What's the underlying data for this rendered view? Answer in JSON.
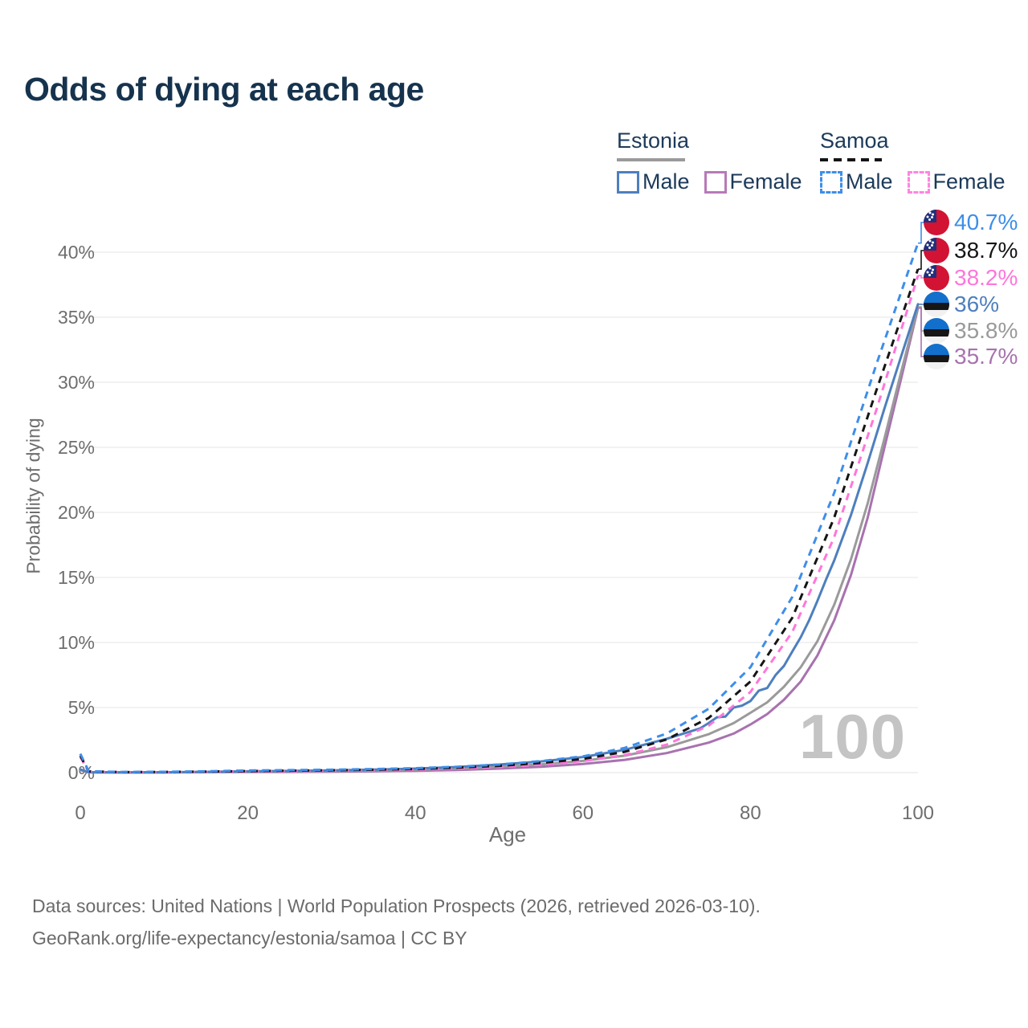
{
  "title": "Odds of dying at each age",
  "watermark": "100",
  "legend": {
    "groups": [
      {
        "id": "estonia",
        "label": "Estonia",
        "line_style": "solid",
        "underline_color": "#9a9a9a",
        "items": [
          {
            "id": "estonia-male",
            "label": "Male",
            "color": "#4e7fbe"
          },
          {
            "id": "estonia-female",
            "label": "Female",
            "color": "#b77ab8"
          }
        ]
      },
      {
        "id": "samoa",
        "label": "Samoa",
        "line_style": "dashed",
        "underline_color": "#141414",
        "items": [
          {
            "id": "samoa-male",
            "label": "Male",
            "color": "#3e8ee9"
          },
          {
            "id": "samoa-female",
            "label": "Female",
            "color": "#ff85e0"
          }
        ]
      }
    ]
  },
  "axes": {
    "x": {
      "title": "Age",
      "min": 0,
      "max": 100,
      "ticks": [
        0,
        20,
        40,
        60,
        80,
        100
      ]
    },
    "y": {
      "title": "Probability of dying",
      "min_percent": 0,
      "max_percent": 40,
      "tick_values": [
        0,
        5,
        10,
        15,
        20,
        25,
        30,
        35,
        40
      ],
      "tick_labels": [
        "0%",
        "5%",
        "10%",
        "15%",
        "20%",
        "25%",
        "30%",
        "35%",
        "40%"
      ]
    }
  },
  "chart_data": {
    "type": "line",
    "title": "Odds of dying at each age",
    "xlabel": "Age",
    "ylabel": "Probability of dying",
    "xlim": [
      0,
      100
    ],
    "ylim_percent": [
      0,
      40
    ],
    "grid": "horizontal-only",
    "legend_position": "top-right",
    "series": [
      {
        "id": "estonia-female",
        "name": "Estonia Female",
        "country": "Estonia",
        "sex": "Female",
        "style": "solid",
        "color": "#a872af",
        "end_label": "35.7%",
        "end_value_percent": 35.7,
        "points": [
          [
            0,
            0.2
          ],
          [
            1,
            0.02
          ],
          [
            5,
            0.01
          ],
          [
            10,
            0.015
          ],
          [
            15,
            0.03
          ],
          [
            20,
            0.045
          ],
          [
            25,
            0.055
          ],
          [
            30,
            0.07
          ],
          [
            35,
            0.1
          ],
          [
            40,
            0.14
          ],
          [
            45,
            0.2
          ],
          [
            50,
            0.31
          ],
          [
            55,
            0.45
          ],
          [
            60,
            0.66
          ],
          [
            65,
            0.98
          ],
          [
            70,
            1.5
          ],
          [
            75,
            2.3
          ],
          [
            78,
            3.0
          ],
          [
            80,
            3.7
          ],
          [
            82,
            4.5
          ],
          [
            84,
            5.6
          ],
          [
            86,
            7.0
          ],
          [
            88,
            9.0
          ],
          [
            90,
            11.7
          ],
          [
            92,
            15.2
          ],
          [
            94,
            19.6
          ],
          [
            96,
            25.0
          ],
          [
            98,
            30.3
          ],
          [
            100,
            35.7
          ]
        ]
      },
      {
        "id": "estonia-both",
        "name": "Estonia (both sexes)",
        "country": "Estonia",
        "sex": "Both",
        "style": "solid",
        "color": "#9a9a9a",
        "end_label": "35.8%",
        "end_value_percent": 35.8,
        "points": [
          [
            0,
            0.22
          ],
          [
            1,
            0.025
          ],
          [
            5,
            0.015
          ],
          [
            10,
            0.02
          ],
          [
            15,
            0.045
          ],
          [
            20,
            0.07
          ],
          [
            25,
            0.09
          ],
          [
            30,
            0.12
          ],
          [
            35,
            0.16
          ],
          [
            40,
            0.22
          ],
          [
            45,
            0.31
          ],
          [
            50,
            0.45
          ],
          [
            55,
            0.63
          ],
          [
            60,
            0.9
          ],
          [
            65,
            1.3
          ],
          [
            70,
            1.95
          ],
          [
            75,
            2.95
          ],
          [
            78,
            3.8
          ],
          [
            80,
            4.6
          ],
          [
            82,
            5.4
          ],
          [
            84,
            6.6
          ],
          [
            86,
            8.1
          ],
          [
            88,
            10.1
          ],
          [
            90,
            12.9
          ],
          [
            92,
            16.4
          ],
          [
            94,
            20.7
          ],
          [
            96,
            25.7
          ],
          [
            98,
            30.8
          ],
          [
            100,
            35.8
          ]
        ]
      },
      {
        "id": "estonia-male",
        "name": "Estonia Male",
        "country": "Estonia",
        "sex": "Male",
        "style": "solid",
        "color": "#4e7fbe",
        "end_label": "36%",
        "end_value_percent": 36.0,
        "points": [
          [
            0,
            0.25
          ],
          [
            1,
            0.03
          ],
          [
            5,
            0.02
          ],
          [
            10,
            0.025
          ],
          [
            15,
            0.06
          ],
          [
            20,
            0.1
          ],
          [
            25,
            0.13
          ],
          [
            30,
            0.17
          ],
          [
            35,
            0.23
          ],
          [
            40,
            0.31
          ],
          [
            45,
            0.43
          ],
          [
            50,
            0.62
          ],
          [
            55,
            0.86
          ],
          [
            60,
            1.2
          ],
          [
            65,
            1.75
          ],
          [
            70,
            2.6
          ],
          [
            72,
            3.0
          ],
          [
            74,
            3.4
          ],
          [
            75,
            3.8
          ],
          [
            76,
            4.25
          ],
          [
            77,
            4.3
          ],
          [
            78,
            5.0
          ],
          [
            79,
            5.15
          ],
          [
            80,
            5.5
          ],
          [
            81,
            6.3
          ],
          [
            82,
            6.5
          ],
          [
            83,
            7.5
          ],
          [
            84,
            8.2
          ],
          [
            85,
            9.3
          ],
          [
            86,
            10.4
          ],
          [
            87,
            11.7
          ],
          [
            88,
            13.2
          ],
          [
            89,
            14.8
          ],
          [
            90,
            16.3
          ],
          [
            92,
            19.8
          ],
          [
            94,
            23.8
          ],
          [
            96,
            28.0
          ],
          [
            98,
            32.0
          ],
          [
            100,
            36.0
          ]
        ]
      },
      {
        "id": "samoa-female",
        "name": "Samoa Female",
        "country": "Samoa",
        "sex": "Female",
        "style": "dashed",
        "color": "#ff76da",
        "end_label": "38.2%",
        "end_value_percent": 38.2,
        "points": [
          [
            0,
            1.2
          ],
          [
            1,
            0.08
          ],
          [
            5,
            0.035
          ],
          [
            10,
            0.04
          ],
          [
            15,
            0.06
          ],
          [
            20,
            0.09
          ],
          [
            25,
            0.11
          ],
          [
            30,
            0.14
          ],
          [
            35,
            0.18
          ],
          [
            40,
            0.23
          ],
          [
            45,
            0.31
          ],
          [
            50,
            0.43
          ],
          [
            55,
            0.61
          ],
          [
            60,
            0.88
          ],
          [
            65,
            1.35
          ],
          [
            70,
            2.15
          ],
          [
            75,
            3.6
          ],
          [
            80,
            6.2
          ],
          [
            85,
            10.8
          ],
          [
            90,
            18.1
          ],
          [
            95,
            27.8
          ],
          [
            100,
            38.2
          ]
        ]
      },
      {
        "id": "samoa-both",
        "name": "Samoa (both sexes)",
        "country": "Samoa",
        "sex": "Both",
        "style": "dashed",
        "color": "#151515",
        "end_label": "38.7%",
        "end_value_percent": 38.7,
        "points": [
          [
            0,
            1.3
          ],
          [
            1,
            0.09
          ],
          [
            5,
            0.04
          ],
          [
            10,
            0.05
          ],
          [
            15,
            0.08
          ],
          [
            20,
            0.12
          ],
          [
            25,
            0.15
          ],
          [
            30,
            0.18
          ],
          [
            35,
            0.22
          ],
          [
            40,
            0.28
          ],
          [
            45,
            0.38
          ],
          [
            50,
            0.52
          ],
          [
            55,
            0.74
          ],
          [
            60,
            1.05
          ],
          [
            65,
            1.6
          ],
          [
            70,
            2.55
          ],
          [
            75,
            4.2
          ],
          [
            80,
            7.0
          ],
          [
            85,
            11.9
          ],
          [
            90,
            19.6
          ],
          [
            95,
            29.3
          ],
          [
            100,
            38.7
          ]
        ]
      },
      {
        "id": "samoa-male",
        "name": "Samoa Male",
        "country": "Samoa",
        "sex": "Male",
        "style": "dashed",
        "color": "#3e8ee9",
        "end_label": "40.7%",
        "end_value_percent": 40.7,
        "points": [
          [
            0,
            1.45
          ],
          [
            1,
            0.1
          ],
          [
            5,
            0.05
          ],
          [
            10,
            0.06
          ],
          [
            15,
            0.1
          ],
          [
            20,
            0.16
          ],
          [
            25,
            0.19
          ],
          [
            30,
            0.22
          ],
          [
            35,
            0.27
          ],
          [
            40,
            0.34
          ],
          [
            45,
            0.45
          ],
          [
            50,
            0.62
          ],
          [
            55,
            0.88
          ],
          [
            60,
            1.25
          ],
          [
            65,
            1.9
          ],
          [
            70,
            3.0
          ],
          [
            75,
            4.9
          ],
          [
            80,
            8.1
          ],
          [
            85,
            13.5
          ],
          [
            90,
            21.5
          ],
          [
            95,
            31.3
          ],
          [
            100,
            40.7
          ]
        ]
      }
    ],
    "end_labels_top_to_bottom": [
      {
        "text": "40.7%",
        "flag": "samoa",
        "color": "#3e8ee9"
      },
      {
        "text": "38.7%",
        "flag": "samoa",
        "color": "#151515"
      },
      {
        "text": "38.2%",
        "flag": "samoa",
        "color": "#ff5fd2"
      },
      {
        "text": "36%",
        "flag": "estonia",
        "color": "#4e7fbe"
      },
      {
        "text": "35.8%",
        "flag": "estonia",
        "color": "#9a9a9a"
      },
      {
        "text": "35.7%",
        "flag": "estonia",
        "color": "#a365a8"
      }
    ]
  },
  "flag_colors": {
    "samoa": {
      "red": "#d21334",
      "blue": "#20307c",
      "stars": "#ffffff"
    },
    "estonia": {
      "blue": "#1270cc",
      "black": "#161616",
      "white": "#f1f1f1"
    }
  },
  "style_colors": {
    "title_text": "#16334e",
    "navy_text": "#1c3a5a",
    "axis_text": "#6e6e6e",
    "gridline": "#ebebeb",
    "watermark": "#c4c4c4",
    "footer_text": "#6b6b6b"
  },
  "footer": {
    "line1": "Data sources: United Nations | World Population Prospects (2026, retrieved 2026-03-10).",
    "line2": "GeoRank.org/life-expectancy/estonia/samoa | CC BY"
  }
}
